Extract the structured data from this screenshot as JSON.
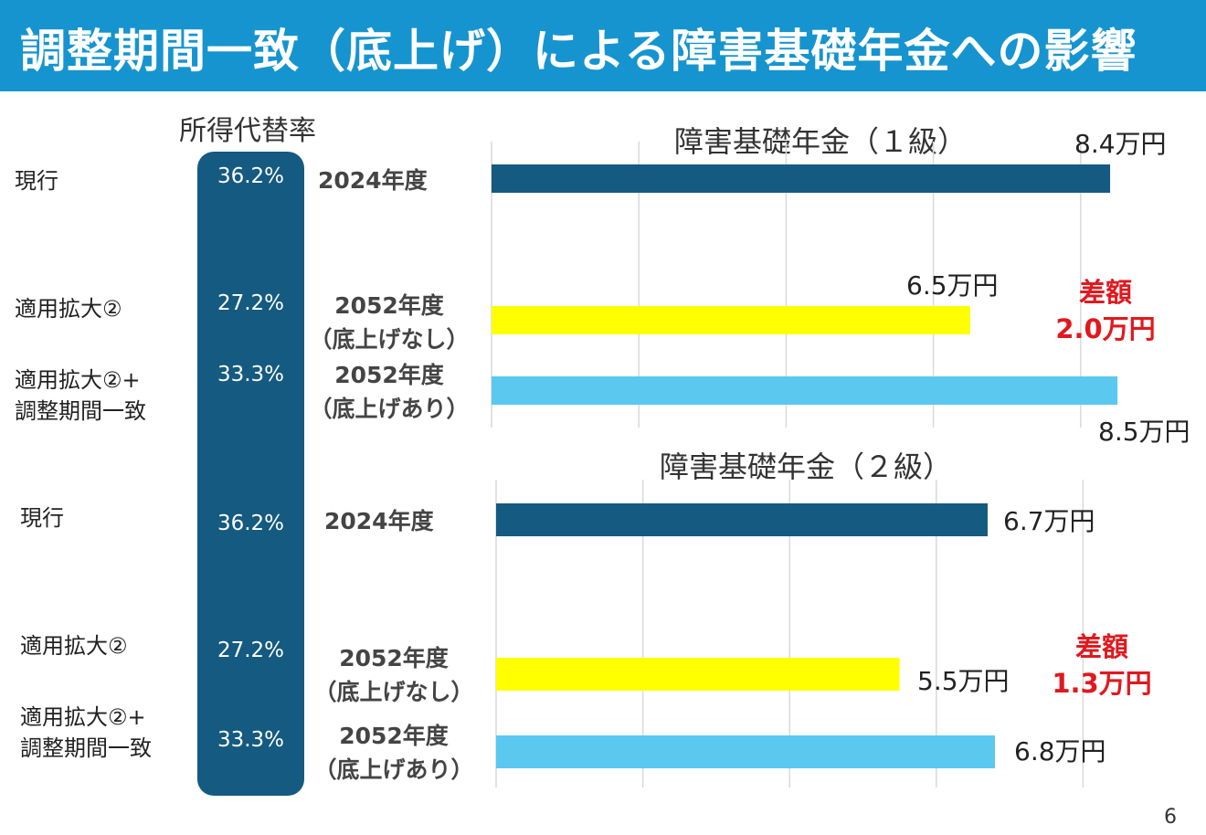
{
  "header": {
    "title": "調整期間一致（底上げ）による障害基礎年金への影響"
  },
  "ratio_heading": "所得代替率",
  "rows": {
    "current": "現行",
    "expansion": "適用拡大②",
    "expansion_adj_line1": "適用拡大②+",
    "expansion_adj_line2": "調整期間一致"
  },
  "ratios": {
    "current": "36.2%",
    "expansion": "27.2%",
    "expansion_adj": "33.3%"
  },
  "years": {
    "y2024": "2024年度",
    "y2052": "2052年度",
    "no_raise": "（底上げなし）",
    "with_raise": "（底上げあり）"
  },
  "colors": {
    "header_bg": "#1694cf",
    "pill": "#155a80",
    "bar_current": "#155a80",
    "bar_no_raise": "#ffff00",
    "bar_with_raise": "#5bc8f0",
    "diff_text": "#e0191f",
    "grid": "#d9d9d9"
  },
  "chart_data": [
    {
      "type": "bar",
      "orientation": "horizontal",
      "title": "障害基礎年金（１級）",
      "categories": [
        "2024年度",
        "2052年度（底上げなし）",
        "2052年度（底上げあり）"
      ],
      "values": [
        8.4,
        6.5,
        8.5
      ],
      "value_labels": [
        "8.4万円",
        "6.5万円",
        "8.5万円"
      ],
      "annotation": {
        "line1": "差額",
        "line2": "2.0万円"
      },
      "xlim": [
        0,
        10
      ],
      "grid": true
    },
    {
      "type": "bar",
      "orientation": "horizontal",
      "title": "障害基礎年金（２級）",
      "categories": [
        "2024年度",
        "2052年度（底上げなし）",
        "2052年度（底上げあり）"
      ],
      "values": [
        6.7,
        5.5,
        6.8
      ],
      "value_labels": [
        "6.7万円",
        "5.5万円",
        "6.8万円"
      ],
      "annotation": {
        "line1": "差額",
        "line2": "1.3万円"
      },
      "xlim": [
        0,
        10
      ],
      "grid": true
    }
  ],
  "page_number": "6"
}
